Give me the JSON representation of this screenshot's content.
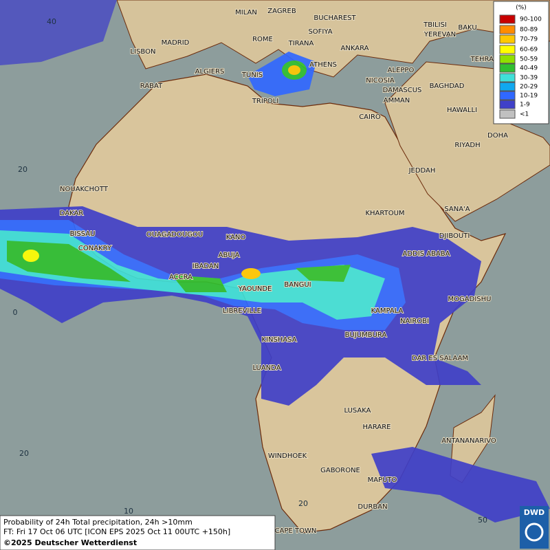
{
  "map_title": "Probability of 24h Total precipitation, 24h >10mm",
  "forecast_time": "FT: Fri 17 Oct 06 UTC [ICON EPS 2025 Oct 11 00UTC +150h]",
  "copyright": "©2025 Deutscher Wetterdienst",
  "logo": "DWD",
  "legend": {
    "title": "(%)",
    "items": [
      {
        "label": "90-100",
        "color": "#c80000"
      },
      {
        "label": "80-89",
        "color": "#ff8c00"
      },
      {
        "label": "70-79",
        "color": "#ffc800"
      },
      {
        "label": "60-69",
        "color": "#ffff00"
      },
      {
        "label": "50-59",
        "color": "#90e000"
      },
      {
        "label": "40-49",
        "color": "#30c030"
      },
      {
        "label": "30-39",
        "color": "#40e0d8"
      },
      {
        "label": "20-29",
        "color": "#10a8f0"
      },
      {
        "label": "10-19",
        "color": "#3068ff"
      },
      {
        "label": "1-9",
        "color": "#4040c8"
      },
      {
        "label": "<1",
        "color": "#c0c0c0"
      }
    ]
  },
  "grid_labels": [
    "40",
    "20",
    "0",
    "20",
    "10",
    "20",
    "50"
  ],
  "cities": [
    "MILAN",
    "ZAGREB",
    "BUCHAREST",
    "TBILISI",
    "BAKU",
    "MADRID",
    "ROME",
    "SOFIYA",
    "TIRANA",
    "ANKARA",
    "YEREVAN",
    "TEHRAN",
    "LISBON",
    "ALGIERS",
    "TUNIS",
    "ATHENS",
    "ALEPPO",
    "NICOSIA",
    "BAGHDAD",
    "RABAT",
    "TRIPOLI",
    "DAMASCUS",
    "AMMAN",
    "HAWALLI",
    "CAIRO",
    "DOHA",
    "RIYADH",
    "NOUAKCHOTT",
    "JEDDAH",
    "DAKAR",
    "KHARTOUM",
    "SANA'A",
    "BISSAU",
    "OUAGADOUGOU",
    "KANO",
    "DJIBOUTI",
    "CONAKRY",
    "ABUJA",
    "ADDIS ABABA",
    "IBADAN",
    "ACCRA",
    "BANGUI",
    "YAOUNDE",
    "MOGADISHU",
    "LIBREVILLE",
    "KAMPALA",
    "NAIROBI",
    "BUJUMBURA",
    "KINSHASA",
    "DAR ES SALAAM",
    "LUANDA",
    "LUSAKA",
    "HARARE",
    "ANTANANARIVO",
    "WINDHOEK",
    "GABORONE",
    "MAPUTO",
    "DURBAN",
    "CAPE TOWN"
  ]
}
